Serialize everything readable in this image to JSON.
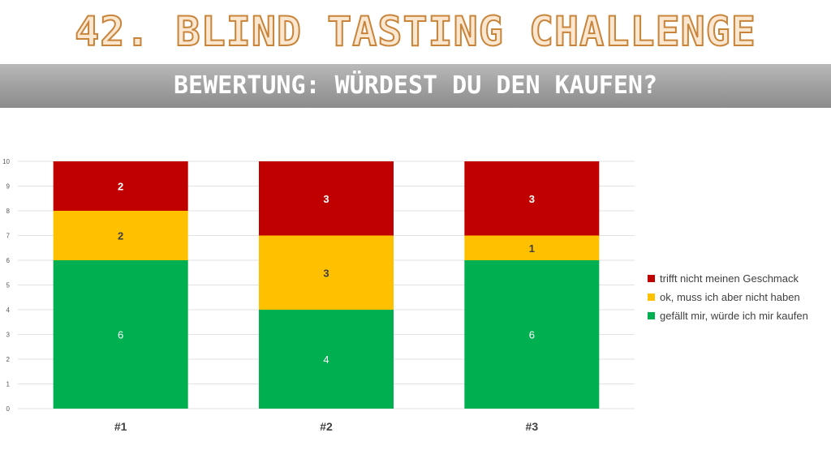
{
  "header": {
    "title": "42. Blind Tasting Challenge",
    "subtitle": "Bewertung: Würdest du den kaufen?"
  },
  "chart_data": {
    "type": "bar",
    "stacked": true,
    "categories": [
      "#1",
      "#2",
      "#3"
    ],
    "series": [
      {
        "name": "gefällt mir, würde ich mir kaufen",
        "values": [
          6,
          4,
          6
        ],
        "color": "#00b050",
        "label_color": "#ffffff"
      },
      {
        "name": "ok, muss ich aber nicht haben",
        "values": [
          2,
          3,
          1
        ],
        "color": "#ffc000",
        "label_color": "#404040"
      },
      {
        "name": "trifft nicht meinen Geschmack",
        "values": [
          2,
          3,
          3
        ],
        "color": "#c00000",
        "label_color": "#ffffff"
      }
    ],
    "ylim": [
      0,
      10
    ],
    "yticks": [
      0,
      1,
      2,
      3,
      4,
      5,
      6,
      7,
      8,
      9,
      10
    ],
    "grid": true,
    "legend_position": "right",
    "legend_order": [
      "trifft nicht meinen Geschmack",
      "ok, muss ich aber nicht haben",
      "gefällt mir, würde ich mir kaufen"
    ]
  }
}
